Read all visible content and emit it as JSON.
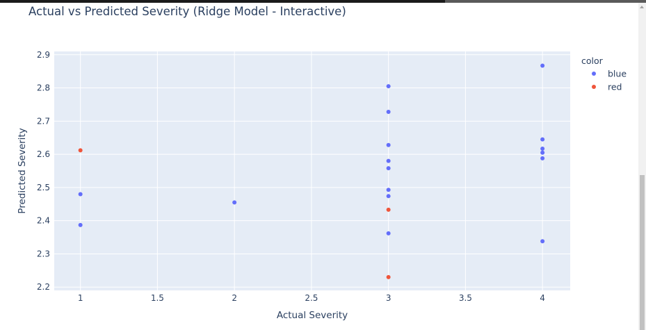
{
  "chart_data": {
    "type": "scatter",
    "title": "Actual vs Predicted Severity (Ridge Model - Interactive)",
    "xlabel": "Actual Severity",
    "ylabel": "Predicted Severity",
    "xlim": [
      0.83,
      4.18
    ],
    "ylim": [
      2.19,
      2.91
    ],
    "xticks": [
      1,
      1.5,
      2,
      2.5,
      3,
      3.5,
      4
    ],
    "xtick_labels": [
      "1",
      "1.5",
      "2",
      "2.5",
      "3",
      "3.5",
      "4"
    ],
    "yticks": [
      2.2,
      2.3,
      2.4,
      2.5,
      2.6,
      2.7,
      2.8,
      2.9
    ],
    "ytick_labels": [
      "2.2",
      "2.3",
      "2.4",
      "2.5",
      "2.6",
      "2.7",
      "2.8",
      "2.9"
    ],
    "grid": true,
    "legend": {
      "title": "color",
      "placement": "top-right"
    },
    "series": [
      {
        "name": "blue",
        "color": "#636efa",
        "x": [
          1,
          1,
          2,
          3,
          3,
          3,
          3,
          3,
          3,
          3,
          3,
          4,
          4,
          4,
          4,
          4,
          4
        ],
        "y": [
          2.48,
          2.387,
          2.455,
          2.805,
          2.728,
          2.628,
          2.58,
          2.558,
          2.493,
          2.474,
          2.362,
          2.867,
          2.645,
          2.617,
          2.605,
          2.588,
          2.338
        ]
      },
      {
        "name": "red",
        "color": "#ef553b",
        "x": [
          1,
          3,
          3
        ],
        "y": [
          2.612,
          2.433,
          2.23
        ]
      }
    ]
  }
}
